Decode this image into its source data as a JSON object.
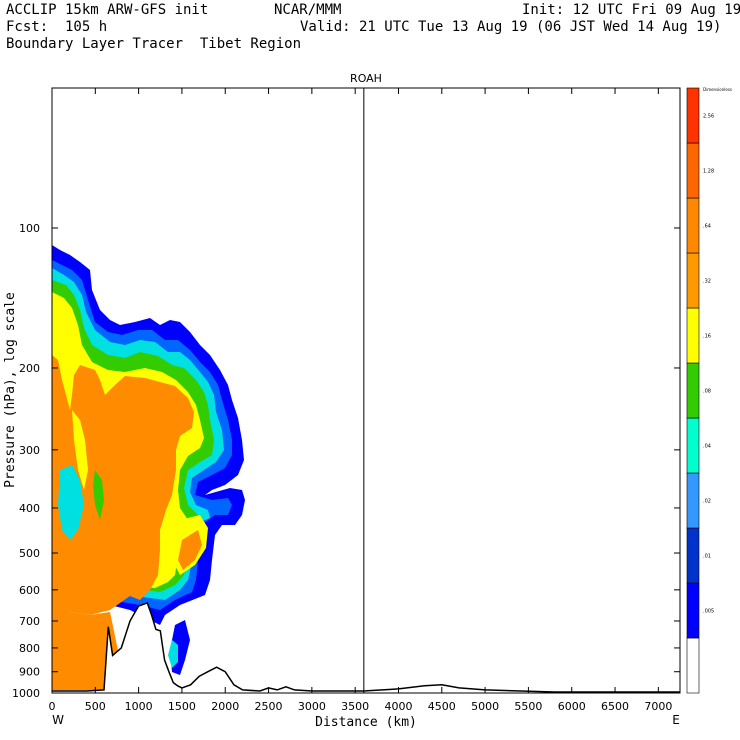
{
  "header": {
    "model": "ACCLIP 15km ARW-GFS init",
    "org": "NCAR/MMM",
    "init": "Init: 12 UTC Fri 09 Aug 19",
    "fcst": "Fcst:  105 h",
    "valid": "Valid: 21 UTC Tue 13 Aug 19 (06 JST Wed 14 Aug 19)",
    "product": "Boundary Layer Tracer  Tibet Region"
  },
  "chart_data": {
    "type": "heatmap",
    "title": "ROAH",
    "xlabel": "Distance (km)",
    "ylabel": "Pressure (hPa), log scale",
    "x_ticks": [
      0,
      500,
      1000,
      1500,
      2000,
      2500,
      3000,
      3500,
      4000,
      4500,
      5000,
      5500,
      6000,
      6500,
      7000
    ],
    "y_ticks": [
      100,
      200,
      300,
      400,
      500,
      600,
      700,
      800,
      900,
      1000
    ],
    "xlim": [
      0,
      7250
    ],
    "ylim": [
      1000,
      50
    ],
    "y_scale": "log",
    "x_end_labels": {
      "left": "W",
      "right": "E"
    },
    "marker_line_x_km": 3600,
    "colorbar": {
      "title": "Dimensionless",
      "levels": [
        "",
        ".005",
        ".01",
        ".02",
        ".04",
        ".08",
        ".16",
        ".32",
        ".64",
        "1.28",
        "2.56",
        ""
      ],
      "colors": [
        "#ffffff",
        "#0000ff",
        "#0033cc",
        "#3399ff",
        "#00ffcc",
        "#33cc00",
        "#ffff00",
        "#ff9900",
        "#ff8800",
        "#ff6600",
        "#ff3300"
      ]
    },
    "terrain_surface_hpa": [
      [
        0,
        990
      ],
      [
        300,
        990
      ],
      [
        400,
        990
      ],
      [
        600,
        985
      ],
      [
        650,
        720
      ],
      [
        700,
        830
      ],
      [
        800,
        800
      ],
      [
        900,
        700
      ],
      [
        1000,
        650
      ],
      [
        1100,
        640
      ],
      [
        1150,
        680
      ],
      [
        1200,
        730
      ],
      [
        1250,
        735
      ],
      [
        1300,
        850
      ],
      [
        1350,
        900
      ],
      [
        1400,
        950
      ],
      [
        1450,
        965
      ],
      [
        1500,
        975
      ],
      [
        1600,
        960
      ],
      [
        1700,
        920
      ],
      [
        1800,
        900
      ],
      [
        1900,
        880
      ],
      [
        2000,
        900
      ],
      [
        2100,
        960
      ],
      [
        2200,
        985
      ],
      [
        2400,
        990
      ],
      [
        2500,
        975
      ],
      [
        2600,
        985
      ],
      [
        2700,
        970
      ],
      [
        2800,
        985
      ],
      [
        3000,
        990
      ],
      [
        3600,
        990
      ],
      [
        4000,
        980
      ],
      [
        4300,
        965
      ],
      [
        4500,
        960
      ],
      [
        4700,
        975
      ],
      [
        5000,
        985
      ],
      [
        5800,
        995
      ],
      [
        7250,
        995
      ]
    ]
  }
}
